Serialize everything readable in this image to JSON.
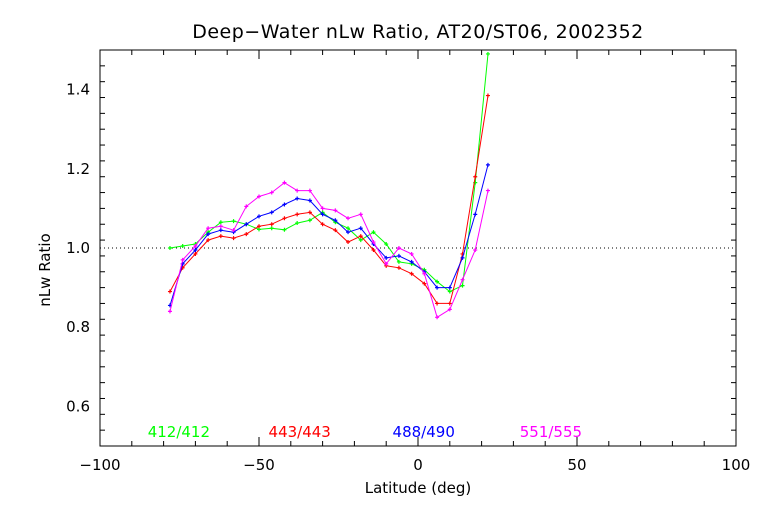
{
  "chart_data": {
    "type": "line",
    "title": "Deep−Water nLw Ratio, AT20/ST06, 2002352",
    "xlabel": "Latitude (deg)",
    "ylabel": "nLw Ratio",
    "xlim": [
      -100,
      100
    ],
    "ylim": [
      0.5,
      1.5
    ],
    "x_ticks": [
      "−100",
      "−50",
      "0",
      "50",
      "100"
    ],
    "y_ticks": [
      "0.6",
      "0.8",
      "1.0",
      "1.2",
      "1.4"
    ],
    "reference_line": {
      "y": 1.0,
      "style": "dotted"
    },
    "legend_position": "bottom",
    "x": [
      -78,
      -74,
      -70,
      -66,
      -62,
      -58,
      -54,
      -50,
      -46,
      -42,
      -38,
      -34,
      -30,
      -26,
      -22,
      -18,
      -14,
      -10,
      -6,
      -2,
      2,
      6,
      10,
      14,
      18,
      22,
      26,
      30,
      34,
      38,
      42,
      46
    ],
    "series": [
      {
        "name": "412/412",
        "color": "#00ff00",
        "values": [
          1.0,
          1.005,
          1.01,
          1.04,
          1.065,
          1.068,
          1.06,
          1.047,
          1.05,
          1.046,
          1.063,
          1.07,
          1.09,
          1.065,
          1.05,
          1.02,
          1.04,
          1.01,
          0.965,
          0.96,
          0.945,
          0.915,
          0.89,
          0.905,
          1.165,
          1.49,
          null,
          null,
          null,
          null,
          null,
          null
        ]
      },
      {
        "name": "443/443",
        "color": "#ff0000",
        "values": [
          0.89,
          0.95,
          0.985,
          1.02,
          1.03,
          1.025,
          1.035,
          1.055,
          1.06,
          1.075,
          1.085,
          1.09,
          1.06,
          1.045,
          1.015,
          1.03,
          0.995,
          0.955,
          0.95,
          0.935,
          0.91,
          0.86,
          0.86,
          0.985,
          1.18,
          1.385,
          null,
          null,
          null,
          null,
          null,
          null
        ]
      },
      {
        "name": "488/490",
        "color": "#0000ff",
        "values": [
          0.855,
          0.96,
          0.995,
          1.035,
          1.045,
          1.04,
          1.06,
          1.08,
          1.09,
          1.11,
          1.125,
          1.12,
          1.085,
          1.07,
          1.04,
          1.05,
          1.01,
          0.975,
          0.98,
          0.965,
          0.94,
          0.9,
          0.9,
          0.975,
          1.085,
          1.21,
          null,
          null,
          null,
          null,
          null,
          null
        ]
      },
      {
        "name": "551/555",
        "color": "#ff00ff",
        "values": [
          0.84,
          0.97,
          1.005,
          1.05,
          1.055,
          1.045,
          1.105,
          1.13,
          1.14,
          1.165,
          1.145,
          1.145,
          1.1,
          1.095,
          1.075,
          1.085,
          1.015,
          0.96,
          1.0,
          0.985,
          0.935,
          0.825,
          0.845,
          0.92,
          0.995,
          1.145,
          null,
          null,
          null,
          null,
          null,
          null
        ]
      }
    ]
  }
}
